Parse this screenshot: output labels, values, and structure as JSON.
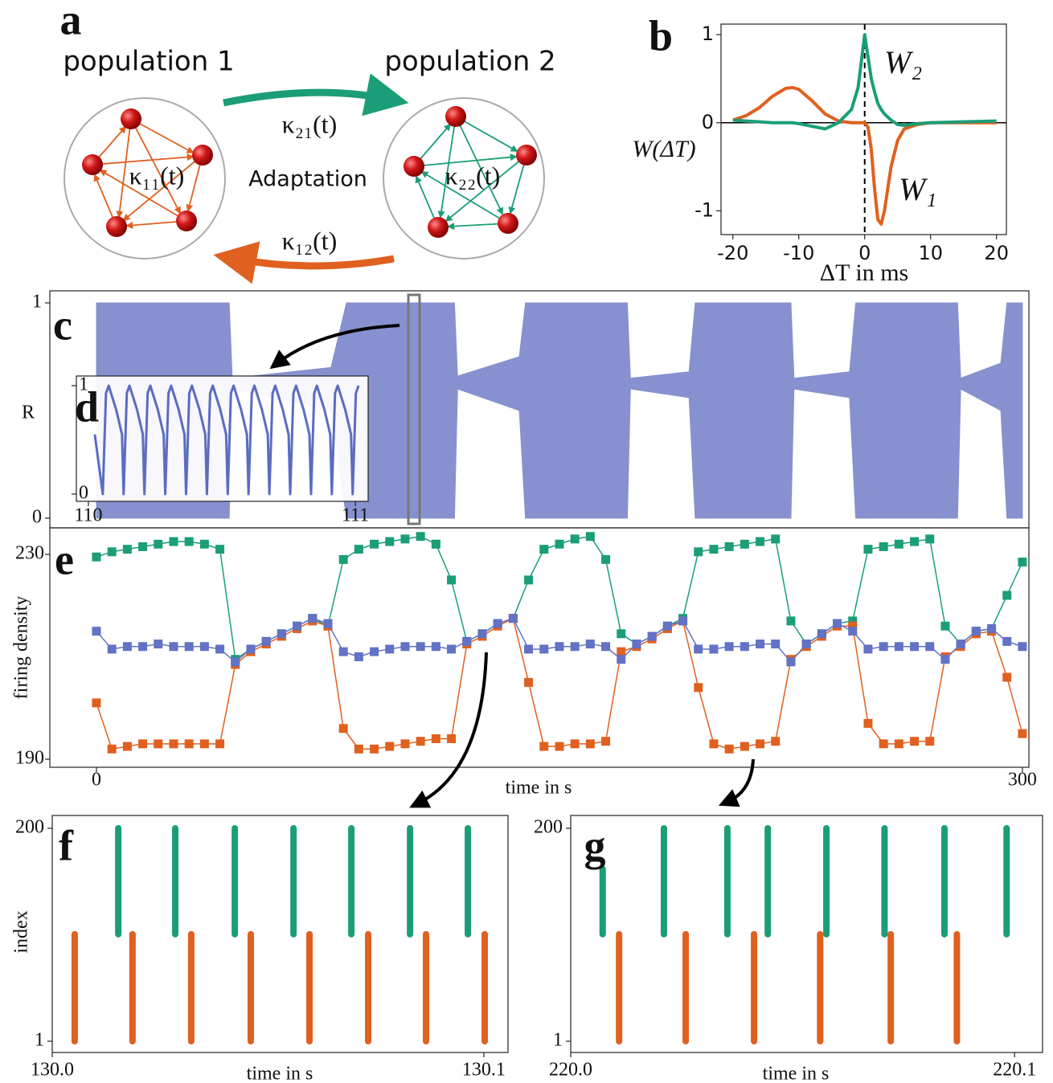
{
  "diagram": {
    "panel_label": "a",
    "left_label": "population 1",
    "right_label": "population 2",
    "top_arrow_label": "κ₂₁(t)",
    "bottom_arrow_label": "κ₁₂(t)",
    "left_loop_label": "κ₁₁(t)",
    "right_loop_label": "κ₂₂(t)",
    "center_label": "Adaptation"
  },
  "chart_data": [
    {
      "type": "line",
      "panel_label": "b",
      "xlabel": "ΔT in ms",
      "ylabel": "W(ΔT)",
      "origin_lines": true,
      "legend": "inline",
      "x": [
        -20,
        -18,
        -16,
        -14,
        -12,
        -11,
        -10,
        -8,
        -6,
        -4,
        -2,
        -1,
        0,
        0.5,
        1,
        1.5,
        2,
        2.5,
        3,
        4,
        5,
        6,
        8,
        10,
        15,
        20
      ],
      "series": [
        {
          "name": "W₁",
          "color": "#e0601f",
          "values": [
            0.03,
            0.08,
            0.17,
            0.3,
            0.39,
            0.4,
            0.38,
            0.25,
            0.1,
            0.02,
            0,
            0,
            0,
            -0.05,
            -0.3,
            -0.75,
            -1.1,
            -1.15,
            -1.0,
            -0.5,
            -0.2,
            -0.07,
            -0.02,
            0,
            0,
            0
          ]
        },
        {
          "name": "W₂",
          "color": "#1b9e77",
          "values": [
            0.03,
            0.02,
            0.01,
            0,
            0,
            0,
            -0.01,
            -0.04,
            -0.07,
            0,
            0.15,
            0.4,
            1.0,
            0.75,
            0.5,
            0.35,
            0.22,
            0.15,
            0.1,
            0.03,
            -0.02,
            -0.03,
            -0.01,
            0,
            0.01,
            0.02
          ]
        }
      ],
      "xlim": [
        -21.8,
        21.5
      ],
      "xticks": [
        -20,
        -10,
        0,
        10,
        20
      ],
      "ylim": [
        -1.27,
        1.12
      ],
      "yticks": [
        -1,
        0,
        1
      ]
    },
    {
      "type": "range-area",
      "panel_label": "c",
      "ylabel": "R",
      "color": "#8791cf",
      "x": [
        0,
        43,
        44,
        76,
        81,
        116,
        117,
        137,
        139,
        172,
        173,
        192,
        194,
        225,
        226,
        244,
        246,
        279,
        280,
        293,
        295,
        300
      ],
      "high": [
        1,
        1,
        0.65,
        0.7,
        1,
        1,
        0.66,
        0.75,
        1,
        1,
        0.65,
        0.68,
        1,
        1,
        0.65,
        0.68,
        1,
        1,
        0.65,
        0.72,
        1,
        1
      ],
      "low": [
        0,
        0,
        0.6,
        0.5,
        0,
        0,
        0.6,
        0.5,
        0,
        0,
        0.6,
        0.56,
        0,
        0,
        0.6,
        0.56,
        0,
        0,
        0.6,
        0.5,
        0,
        0
      ],
      "xlim": [
        -15.1,
        302.1
      ],
      "ylim": [
        -0.045,
        1.056
      ],
      "yticks": [
        0,
        1
      ]
    },
    {
      "type": "line",
      "panel_label": "d",
      "x": [
        110.024,
        110.054,
        110.066,
        110.076,
        110.104,
        110.126,
        110.132,
        110.144,
        110.154,
        110.182,
        110.204,
        110.21,
        110.222,
        110.232,
        110.26,
        110.282,
        110.288,
        110.3,
        110.31,
        110.338,
        110.36,
        110.366,
        110.378,
        110.388,
        110.416,
        110.438,
        110.444,
        110.456,
        110.466,
        110.494,
        110.516,
        110.522,
        110.534,
        110.544,
        110.572,
        110.594,
        110.6,
        110.612,
        110.622,
        110.65,
        110.672,
        110.678,
        110.69,
        110.7,
        110.728,
        110.75,
        110.756,
        110.768,
        110.778,
        110.806,
        110.828,
        110.834,
        110.846,
        110.856,
        110.884,
        110.906,
        110.912,
        110.924,
        110.934,
        110.962,
        110.984,
        110.99,
        111.002,
        111.012
      ],
      "series": [
        {
          "color": "#5b6cc0",
          "values": [
            0.55,
            0,
            0.93,
            1,
            0.78,
            0.55,
            0,
            0.93,
            1,
            0.78,
            0.55,
            0,
            0.93,
            1,
            0.78,
            0.55,
            0,
            0.93,
            1,
            0.78,
            0.55,
            0,
            0.93,
            1,
            0.78,
            0.55,
            0,
            0.93,
            1,
            0.78,
            0.55,
            0,
            0.93,
            1,
            0.78,
            0.55,
            0,
            0.93,
            1,
            0.78,
            0.55,
            0,
            0.93,
            1,
            0.78,
            0.55,
            0,
            0.93,
            1,
            0.78,
            0.55,
            0,
            0.93,
            1,
            0.78,
            0.55,
            0,
            0.93,
            1,
            0.78,
            0.55,
            0,
            0.93,
            1
          ]
        }
      ],
      "xlim": [
        109.955,
        111.048
      ],
      "xticks": [
        110,
        111
      ],
      "ylim": [
        -0.067,
        1.089
      ],
      "yticks": [
        0,
        1
      ]
    },
    {
      "type": "line",
      "panel_label": "e",
      "markers": true,
      "xlabel": "time in s",
      "ylabel": "firing density",
      "x": [
        0,
        5,
        10,
        15,
        20,
        25,
        30,
        35,
        40,
        45,
        50,
        55,
        60,
        65,
        70,
        75,
        80,
        85,
        90,
        95,
        100,
        105,
        110,
        115,
        120,
        125,
        130,
        135,
        140,
        145,
        150,
        155,
        160,
        165,
        170,
        175,
        180,
        185,
        190,
        195,
        200,
        205,
        210,
        215,
        220,
        225,
        230,
        235,
        240,
        245,
        250,
        255,
        260,
        265,
        270,
        275,
        280,
        285,
        290,
        295,
        300
      ],
      "series": [
        {
          "color": "#1b9e77",
          "values": [
            229.5,
            230.5,
            231,
            231.5,
            232,
            232.5,
            232.5,
            232,
            231,
            209.5,
            211.5,
            213,
            214.5,
            216,
            217.5,
            216,
            229,
            231,
            232,
            232.5,
            233,
            233.5,
            232,
            225,
            213,
            214.5,
            216.5,
            217.5,
            225,
            231,
            232,
            233,
            233.5,
            229,
            214.5,
            212.5,
            214,
            216,
            217.5,
            230.5,
            231,
            231.5,
            232,
            232.5,
            233,
            217,
            212.5,
            214.5,
            216.5,
            217,
            231,
            231.5,
            232,
            232.5,
            233,
            216,
            212.5,
            215,
            215.5,
            222,
            228.5
          ]
        },
        {
          "color": "#e0601f",
          "values": [
            201,
            192,
            192.5,
            193,
            193,
            193,
            193,
            193,
            193,
            208.5,
            211,
            212.5,
            214,
            215.5,
            217,
            216,
            196,
            192,
            192,
            192.5,
            193,
            193.5,
            194,
            194,
            212.5,
            214,
            216,
            217.5,
            205,
            192.5,
            192.5,
            193,
            193,
            193.5,
            211,
            212,
            213.5,
            215.5,
            217,
            204,
            193,
            192,
            192.5,
            193,
            193.5,
            209.5,
            212,
            214,
            216,
            216,
            197,
            193,
            193,
            193.5,
            193.5,
            210,
            212,
            214.5,
            215,
            206,
            195
          ]
        },
        {
          "color": "#6272c4",
          "values": [
            215,
            211.5,
            212,
            212,
            212.5,
            212,
            212,
            212,
            211.5,
            209,
            211.5,
            213,
            214.5,
            216,
            217.5,
            216.5,
            211,
            210,
            211,
            211.5,
            212,
            212,
            212,
            211.5,
            213,
            214.5,
            216.5,
            217.5,
            211.5,
            211.5,
            212,
            212,
            212.5,
            212,
            209.5,
            212.5,
            214,
            216,
            217,
            211.5,
            211.5,
            212,
            212,
            212.5,
            212.5,
            209,
            212.5,
            214.5,
            216.5,
            215,
            211.5,
            212,
            212,
            212,
            212,
            209.5,
            212.5,
            215,
            215.5,
            213,
            212
          ]
        }
      ],
      "xlim": [
        -15.1,
        302.1
      ],
      "xticks": [
        0,
        300
      ],
      "ylim": [
        188.43,
        235.18
      ],
      "yticks": [
        190,
        230
      ]
    },
    {
      "type": "raster",
      "panel_label": "f",
      "xlabel": "time in s",
      "ylabel": "index",
      "series": [
        {
          "color": "#1b9e77",
          "x": [
            130.0153,
            130.0285,
            130.0423,
            130.0559,
            130.0693,
            130.0829,
            130.0963
          ],
          "low": [
            101,
            101,
            101,
            101,
            101,
            101,
            101
          ],
          "high": [
            200,
            200,
            200,
            200,
            200,
            200,
            200
          ]
        },
        {
          "color": "#e0601f",
          "x": [
            130.0052,
            130.0186,
            130.0322,
            130.046,
            130.0596,
            130.0732,
            130.0866,
            130.1002
          ],
          "low": [
            1,
            1,
            1,
            1,
            1,
            1,
            1,
            1
          ],
          "high": [
            101,
            101,
            101,
            101,
            101,
            101,
            101,
            101
          ]
        }
      ],
      "xlim": [
        130.0,
        130.1056
      ],
      "xticks": [
        {
          "value": 130,
          "label": "130.0"
        },
        130.1
      ],
      "ylim": [
        -9.5,
        212
      ],
      "yticks": [
        1,
        200
      ]
    },
    {
      "type": "raster",
      "panel_label": "g",
      "xlabel": "time in s",
      "series": [
        {
          "color": "#1b9e77",
          "x": [
            220.0072,
            220.021,
            220.0353,
            220.0444,
            220.0576,
            220.0707,
            220.0842,
            220.0982
          ],
          "low": [
            101,
            101,
            101,
            101,
            101,
            101,
            101,
            101
          ],
          "high": [
            162,
            200,
            200,
            200,
            200,
            200,
            200,
            200
          ]
        },
        {
          "color": "#e0601f",
          "x": [
            220.0109,
            220.0259,
            220.0413,
            220.0562,
            220.0721,
            220.087
          ],
          "low": [
            1,
            1,
            1,
            1,
            1,
            1
          ],
          "high": [
            101,
            101,
            101,
            101,
            101,
            101
          ]
        }
      ],
      "xlim": [
        220.0,
        220.1063
      ],
      "xticks": [
        {
          "value": 220,
          "label": "220.0"
        },
        220.1
      ],
      "ylim": [
        -9.5,
        212
      ],
      "yticks": [
        1,
        200
      ]
    }
  ]
}
